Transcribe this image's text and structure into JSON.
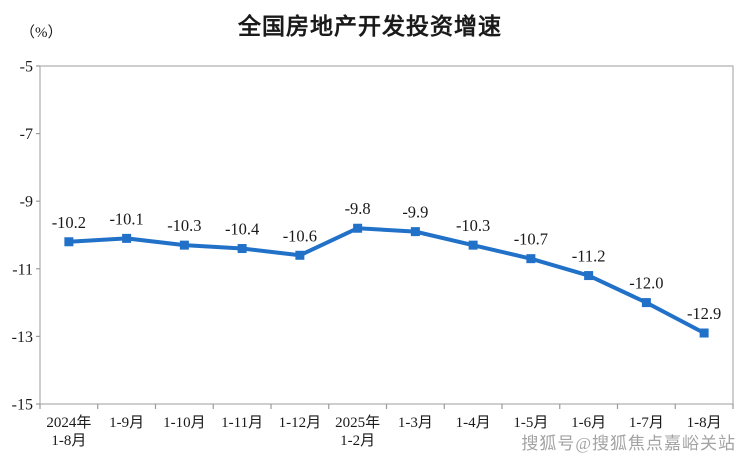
{
  "watermark": "搜狐号@搜狐焦点嘉峪关站",
  "colors": {
    "line": "#2271c8",
    "text": "#1a1a1a",
    "axis": "#b3b3b3",
    "tick": "#9a9a9a",
    "watermark": "#a3a3a3",
    "background": "#ffffff"
  },
  "chart_data": {
    "type": "line",
    "title": "全国房地产开发投资增速",
    "ylabel": "（%）",
    "categories": [
      "2024年\n1-8月",
      "1-9月",
      "1-10月",
      "1-11月",
      "1-12月",
      "2025年\n1-2月",
      "1-3月",
      "1-4月",
      "1-5月",
      "1-6月",
      "1-7月",
      "1-8月"
    ],
    "values": [
      -10.2,
      -10.1,
      -10.3,
      -10.4,
      -10.6,
      -9.8,
      -9.9,
      -10.3,
      -10.7,
      -11.2,
      -12.0,
      -12.9
    ],
    "ylim": [
      -15,
      -5
    ],
    "yticks": [
      -5,
      -7,
      -9,
      -11,
      -13,
      -15
    ],
    "grid": false,
    "legend": false,
    "data_labels": true,
    "marker": "square",
    "xlabel": ""
  }
}
